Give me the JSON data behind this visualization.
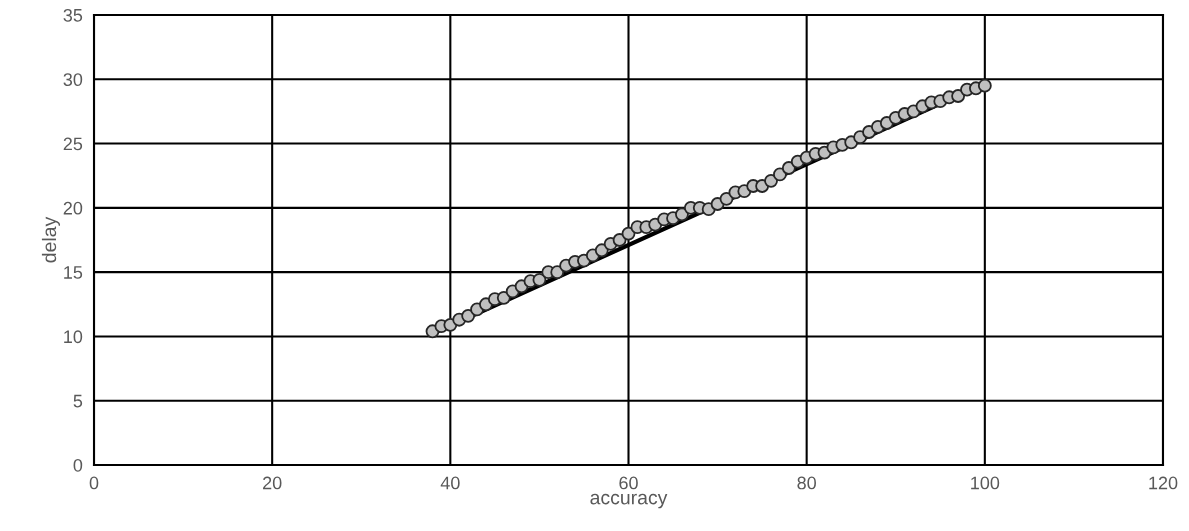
{
  "chart_data": {
    "type": "scatter",
    "xlabel": "accuracy",
    "ylabel": "delay",
    "xlim": [
      0,
      120
    ],
    "ylim": [
      0,
      35
    ],
    "xticks": [
      0,
      20,
      40,
      60,
      80,
      100,
      120
    ],
    "yticks": [
      0,
      5,
      10,
      15,
      20,
      25,
      30,
      35
    ],
    "grid": true,
    "marker": "circle",
    "series": [
      {
        "type": "line",
        "color": "#000000",
        "x": [
          38,
          95
        ],
        "values": [
          10.2,
          28.1
        ],
        "marker": "none"
      },
      {
        "color": "#c0c0c0",
        "x": [
          38,
          39,
          40,
          41,
          42,
          43,
          44,
          45,
          46,
          47,
          48,
          49,
          50,
          51,
          52,
          53,
          54,
          55,
          56,
          57,
          58,
          59,
          60,
          61,
          62,
          63,
          64,
          65,
          66,
          67,
          68,
          69,
          70,
          71,
          72,
          73,
          74,
          75,
          76,
          77,
          78,
          79,
          80,
          81,
          82,
          83,
          84,
          85,
          86,
          87,
          88,
          89,
          90,
          91,
          92,
          93,
          94,
          95,
          96,
          97,
          98,
          99,
          100
        ],
        "values": [
          10.4,
          10.8,
          10.9,
          11.3,
          11.6,
          12.1,
          12.5,
          12.9,
          13.0,
          13.5,
          13.9,
          14.3,
          14.4,
          15.0,
          15.0,
          15.5,
          15.8,
          15.9,
          16.3,
          16.7,
          17.2,
          17.5,
          18.0,
          18.5,
          18.5,
          18.7,
          19.1,
          19.2,
          19.5,
          20.0,
          20.0,
          19.9,
          20.3,
          20.7,
          21.2,
          21.3,
          21.7,
          21.7,
          22.1,
          22.6,
          23.1,
          23.6,
          23.9,
          24.2,
          24.3,
          24.7,
          24.9,
          25.1,
          25.5,
          25.9,
          26.3,
          26.6,
          27.0,
          27.3,
          27.5,
          27.9,
          28.2,
          28.3,
          28.6,
          28.7,
          29.2,
          29.3,
          29.5
        ]
      }
    ]
  }
}
